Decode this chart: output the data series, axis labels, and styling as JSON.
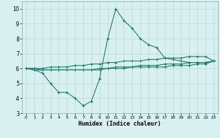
{
  "xlabel": "Humidex (Indice chaleur)",
  "x": [
    0,
    1,
    2,
    3,
    4,
    5,
    6,
    7,
    8,
    9,
    10,
    11,
    12,
    13,
    14,
    15,
    16,
    17,
    18,
    19,
    20,
    21,
    22,
    23
  ],
  "line1": [
    6.0,
    5.9,
    5.7,
    5.0,
    4.4,
    4.4,
    4.0,
    3.5,
    3.8,
    5.3,
    8.0,
    10.0,
    9.2,
    8.7,
    8.0,
    7.6,
    7.4,
    6.7,
    6.6,
    6.5,
    6.4,
    6.4,
    6.4,
    6.5
  ],
  "line2": [
    6.0,
    6.0,
    6.0,
    6.1,
    6.1,
    6.1,
    6.2,
    6.2,
    6.3,
    6.3,
    6.4,
    6.4,
    6.5,
    6.5,
    6.5,
    6.6,
    6.6,
    6.7,
    6.7,
    6.7,
    6.8,
    6.8,
    6.8,
    6.5
  ],
  "line3": [
    6.0,
    6.0,
    5.9,
    5.9,
    5.9,
    5.9,
    5.9,
    5.9,
    5.9,
    5.9,
    6.0,
    6.0,
    6.0,
    6.1,
    6.1,
    6.1,
    6.1,
    6.1,
    6.2,
    6.2,
    6.2,
    6.3,
    6.3,
    6.5
  ],
  "line4": [
    6.0,
    5.9,
    5.9,
    5.9,
    5.9,
    5.9,
    5.9,
    5.9,
    5.9,
    6.0,
    6.0,
    6.1,
    6.1,
    6.1,
    6.2,
    6.2,
    6.2,
    6.3,
    6.3,
    6.3,
    6.4,
    6.4,
    6.4,
    6.5
  ],
  "line_color": "#1a7a6e",
  "bg_color": "#d8f0f0",
  "grid_color": "#b8d8d8",
  "ylim": [
    3,
    10.5
  ],
  "xlim": [
    -0.5,
    23.5
  ],
  "yticks": [
    3,
    4,
    5,
    6,
    7,
    8,
    9,
    10
  ],
  "xticks": [
    0,
    1,
    2,
    3,
    4,
    5,
    6,
    7,
    8,
    9,
    10,
    11,
    12,
    13,
    14,
    15,
    16,
    17,
    18,
    19,
    20,
    21,
    22,
    23
  ]
}
